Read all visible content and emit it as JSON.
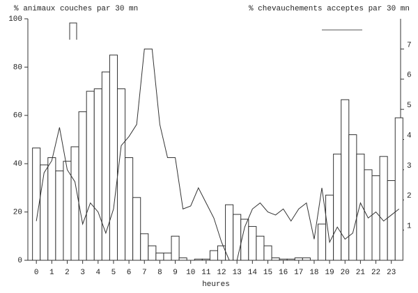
{
  "chart_data": {
    "type": "bar_line",
    "y_label": "% animaux couches par 30 mn",
    "y2_label": "% chevauchements acceptes par 30 mn",
    "x_label": "heures",
    "x": [
      0,
      0.5,
      1,
      1.5,
      2,
      2.5,
      3,
      3.5,
      4,
      4.5,
      5,
      5.5,
      6,
      6.5,
      7,
      7.5,
      8,
      8.5,
      9,
      9.5,
      10,
      10.5,
      11,
      11.5,
      12,
      12.5,
      13,
      13.5,
      14,
      14.5,
      15,
      15.5,
      16,
      16.5,
      17,
      17.5,
      18,
      18.5,
      19,
      19.5,
      20,
      20.5,
      21,
      21.5,
      22,
      22.5,
      23,
      23.5
    ],
    "series": [
      {
        "type": "bar",
        "color": "#ffffff",
        "values": [
          46.5,
          39.5,
          42.5,
          37,
          41,
          47,
          61.5,
          70,
          71,
          78,
          85,
          71,
          42.5,
          26,
          11,
          6,
          3,
          3,
          10,
          1,
          0,
          0.5,
          0.5,
          4,
          6,
          23,
          19,
          17,
          14,
          10,
          6,
          1,
          0.5,
          0.5,
          1,
          1,
          0,
          15,
          27,
          44,
          66.5,
          52,
          44,
          37.5,
          35,
          43,
          33,
          59
        ]
      },
      {
        "type": "line",
        "axis": "y2",
        "color": "#333333",
        "values": [
          1.3,
          2.9,
          3.3,
          4.4,
          3.0,
          2.6,
          1.2,
          1.9,
          1.6,
          0.9,
          1.7,
          3.8,
          4.1,
          4.5,
          7.0,
          7.0,
          4.5,
          3.4,
          3.4,
          1.7,
          1.8,
          2.4,
          1.9,
          1.4,
          0.6,
          0,
          0,
          1.1,
          1.7,
          1.9,
          1.6,
          1.5,
          1.7,
          1.3,
          1.7,
          1.9,
          0.7,
          2.4,
          0.6,
          1.1,
          0.7,
          0.9,
          1.9,
          1.4,
          1.6,
          1.3,
          1.5,
          1.7
        ]
      }
    ],
    "xlim": [
      -0.55,
      23.6
    ],
    "xticks": [
      0,
      1,
      2,
      3,
      4,
      5,
      6,
      7,
      8,
      9,
      10,
      11,
      12,
      13,
      14,
      15,
      16,
      17,
      18,
      19,
      20,
      21,
      22,
      23
    ],
    "ylim": [
      0,
      100
    ],
    "yticks": [
      0,
      20,
      40,
      60,
      80,
      100
    ],
    "y2lim": [
      0,
      8
    ],
    "y2ticks": [
      1,
      2,
      3,
      4,
      5,
      6,
      7
    ]
  }
}
